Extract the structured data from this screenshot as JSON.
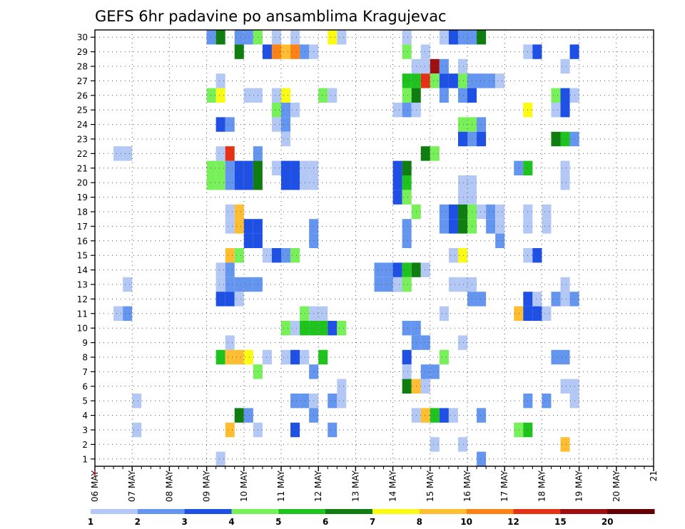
{
  "chart_data": {
    "type": "heatmap",
    "title": "GEFS 6hr padavine po ansamblima Kragujevac",
    "xlabel": "",
    "ylabel": "",
    "x_tick_labels": [
      "06 MAY",
      "07 MAY",
      "08 MAY",
      "09 MAY",
      "10 MAY",
      "11 MAY",
      "12 MAY",
      "13 MAY",
      "14 MAY",
      "15 MAY",
      "16 MAY",
      "17 MAY",
      "18 MAY",
      "19 MAY",
      "20 MAY",
      "21"
    ],
    "y_tick_labels": [
      "1",
      "2",
      "3",
      "4",
      "5",
      "6",
      "7",
      "8",
      "9",
      "10",
      "11",
      "12",
      "13",
      "14",
      "15",
      "16",
      "17",
      "18",
      "19",
      "20",
      "21",
      "22",
      "23",
      "24",
      "25",
      "26",
      "27",
      "28",
      "29",
      "30"
    ],
    "xlim": [
      0,
      60
    ],
    "ylim": [
      0,
      30
    ],
    "x_step_hours": 6,
    "grid": true,
    "legend": {
      "placement": "bottom",
      "bins": [
        1,
        2,
        3,
        4,
        5,
        6,
        7,
        8,
        10,
        12,
        15,
        20
      ],
      "labels": [
        "1",
        "2",
        "3",
        "4",
        "5",
        "6",
        "7",
        "8",
        "10",
        "12",
        "15",
        "20"
      ],
      "colors": [
        "#b4c8f5",
        "#6496f0",
        "#1e50e6",
        "#78f05a",
        "#1ec31e",
        "#0f7d0f",
        "#fafa14",
        "#ffbe32",
        "#ff8214",
        "#e63214",
        "#a00f0f",
        "#640000"
      ]
    },
    "cells": [
      {
        "x": 12,
        "y": 30,
        "v": 2
      },
      {
        "x": 13,
        "y": 30,
        "v": 6
      },
      {
        "x": 15,
        "y": 30,
        "v": 2
      },
      {
        "x": 16,
        "y": 30,
        "v": 2
      },
      {
        "x": 17,
        "y": 30,
        "v": 4
      },
      {
        "x": 19,
        "y": 30,
        "v": 1
      },
      {
        "x": 21,
        "y": 30,
        "v": 1
      },
      {
        "x": 26,
        "y": 30,
        "v": 1
      },
      {
        "x": 33,
        "y": 30,
        "v": 1
      },
      {
        "x": 37,
        "y": 30,
        "v": 1
      },
      {
        "x": 38,
        "y": 30,
        "v": 3
      },
      {
        "x": 39,
        "y": 30,
        "v": 2
      },
      {
        "x": 40,
        "y": 30,
        "v": 4
      },
      {
        "x": 41,
        "y": 30,
        "v": 6
      },
      {
        "x": 25,
        "y": 29,
        "v": 7
      },
      {
        "x": 40,
        "y": 29,
        "v": 2
      },
      {
        "x": 15,
        "y": 28,
        "v": 6
      },
      {
        "x": 18,
        "y": 28,
        "v": 3
      },
      {
        "x": 19,
        "y": 28,
        "v": 10
      },
      {
        "x": 20,
        "y": 28,
        "v": 8
      },
      {
        "x": 21,
        "y": 28,
        "v": 10
      },
      {
        "x": 22,
        "y": 28,
        "v": 2
      },
      {
        "x": 23,
        "y": 28,
        "v": 1
      },
      {
        "x": 33,
        "y": 28,
        "v": 4
      },
      {
        "x": 35,
        "y": 28,
        "v": 1
      },
      {
        "x": 46,
        "y": 28,
        "v": 1
      },
      {
        "x": 47,
        "y": 28,
        "v": 3
      },
      {
        "x": 51,
        "y": 28,
        "v": 3
      },
      {
        "x": 34,
        "y": 27,
        "v": 1
      },
      {
        "x": 35,
        "y": 27,
        "v": 1
      },
      {
        "x": 36,
        "y": 27,
        "v": 15
      },
      {
        "x": 37,
        "y": 27,
        "v": 2
      },
      {
        "x": 39,
        "y": 27,
        "v": 1
      },
      {
        "x": 50,
        "y": 27,
        "v": 1
      },
      {
        "x": 13,
        "y": 26,
        "v": 1
      },
      {
        "x": 33,
        "y": 26,
        "v": 5
      },
      {
        "x": 34,
        "y": 26,
        "v": 5
      },
      {
        "x": 35,
        "y": 26,
        "v": 12
      },
      {
        "x": 36,
        "y": 26,
        "v": 4
      },
      {
        "x": 37,
        "y": 26,
        "v": 3
      },
      {
        "x": 38,
        "y": 26,
        "v": 3
      },
      {
        "x": 39,
        "y": 26,
        "v": 4
      },
      {
        "x": 40,
        "y": 26,
        "v": 2
      },
      {
        "x": 41,
        "y": 26,
        "v": 2
      },
      {
        "x": 42,
        "y": 26,
        "v": 2
      },
      {
        "x": 43,
        "y": 26,
        "v": 1
      },
      {
        "x": 12,
        "y": 25,
        "v": 4
      },
      {
        "x": 13,
        "y": 25,
        "v": 7
      },
      {
        "x": 16,
        "y": 25,
        "v": 1
      },
      {
        "x": 17,
        "y": 25,
        "v": 1
      },
      {
        "x": 19,
        "y": 25,
        "v": 1
      },
      {
        "x": 20,
        "y": 25,
        "v": 7
      },
      {
        "x": 24,
        "y": 25,
        "v": 4
      },
      {
        "x": 25,
        "y": 25,
        "v": 1
      },
      {
        "x": 33,
        "y": 25,
        "v": 4
      },
      {
        "x": 34,
        "y": 25,
        "v": 6
      },
      {
        "x": 37,
        "y": 25,
        "v": 2
      },
      {
        "x": 39,
        "y": 25,
        "v": 2
      },
      {
        "x": 40,
        "y": 25,
        "v": 3
      },
      {
        "x": 49,
        "y": 25,
        "v": 4
      },
      {
        "x": 50,
        "y": 25,
        "v": 3
      },
      {
        "x": 51,
        "y": 25,
        "v": 1
      },
      {
        "x": 19,
        "y": 24,
        "v": 4
      },
      {
        "x": 20,
        "y": 24,
        "v": 2
      },
      {
        "x": 21,
        "y": 24,
        "v": 1
      },
      {
        "x": 32,
        "y": 24,
        "v": 1
      },
      {
        "x": 33,
        "y": 24,
        "v": 2
      },
      {
        "x": 34,
        "y": 24,
        "v": 1
      },
      {
        "x": 46,
        "y": 24,
        "v": 7
      },
      {
        "x": 49,
        "y": 24,
        "v": 1
      },
      {
        "x": 50,
        "y": 24,
        "v": 3
      },
      {
        "x": 13,
        "y": 23,
        "v": 3
      },
      {
        "x": 14,
        "y": 23,
        "v": 2
      },
      {
        "x": 19,
        "y": 23,
        "v": 1
      },
      {
        "x": 20,
        "y": 23,
        "v": 2
      },
      {
        "x": 39,
        "y": 23,
        "v": 4
      },
      {
        "x": 40,
        "y": 23,
        "v": 4
      },
      {
        "x": 41,
        "y": 23,
        "v": 2
      },
      {
        "x": 20,
        "y": 22,
        "v": 1
      },
      {
        "x": 39,
        "y": 22,
        "v": 3
      },
      {
        "x": 40,
        "y": 22,
        "v": 2
      },
      {
        "x": 41,
        "y": 22,
        "v": 3
      },
      {
        "x": 49,
        "y": 22,
        "v": 6
      },
      {
        "x": 50,
        "y": 22,
        "v": 5
      },
      {
        "x": 51,
        "y": 22,
        "v": 2
      },
      {
        "x": 2,
        "y": 21,
        "v": 1
      },
      {
        "x": 3,
        "y": 21,
        "v": 1
      },
      {
        "x": 13,
        "y": 21,
        "v": 1
      },
      {
        "x": 14,
        "y": 21,
        "v": 12
      },
      {
        "x": 17,
        "y": 21,
        "v": 2
      },
      {
        "x": 35,
        "y": 21,
        "v": 6
      },
      {
        "x": 36,
        "y": 21,
        "v": 4
      },
      {
        "x": 12,
        "y": 20,
        "v": 4
      },
      {
        "x": 13,
        "y": 20,
        "v": 4
      },
      {
        "x": 14,
        "y": 20,
        "v": 2
      },
      {
        "x": 15,
        "y": 20,
        "v": 3
      },
      {
        "x": 16,
        "y": 20,
        "v": 3
      },
      {
        "x": 17,
        "y": 20,
        "v": 6
      },
      {
        "x": 19,
        "y": 20,
        "v": 1
      },
      {
        "x": 20,
        "y": 20,
        "v": 3
      },
      {
        "x": 21,
        "y": 20,
        "v": 3
      },
      {
        "x": 22,
        "y": 20,
        "v": 1
      },
      {
        "x": 23,
        "y": 20,
        "v": 1
      },
      {
        "x": 32,
        "y": 20,
        "v": 3
      },
      {
        "x": 33,
        "y": 20,
        "v": 6
      },
      {
        "x": 45,
        "y": 20,
        "v": 2
      },
      {
        "x": 46,
        "y": 20,
        "v": 5
      },
      {
        "x": 50,
        "y": 20,
        "v": 1
      },
      {
        "x": 12,
        "y": 19,
        "v": 4
      },
      {
        "x": 13,
        "y": 19,
        "v": 4
      },
      {
        "x": 14,
        "y": 19,
        "v": 2
      },
      {
        "x": 15,
        "y": 19,
        "v": 3
      },
      {
        "x": 16,
        "y": 19,
        "v": 3
      },
      {
        "x": 17,
        "y": 19,
        "v": 6
      },
      {
        "x": 20,
        "y": 19,
        "v": 3
      },
      {
        "x": 21,
        "y": 19,
        "v": 3
      },
      {
        "x": 22,
        "y": 19,
        "v": 1
      },
      {
        "x": 23,
        "y": 19,
        "v": 1
      },
      {
        "x": 32,
        "y": 19,
        "v": 3
      },
      {
        "x": 33,
        "y": 19,
        "v": 5
      },
      {
        "x": 39,
        "y": 19,
        "v": 1
      },
      {
        "x": 40,
        "y": 19,
        "v": 1
      },
      {
        "x": 50,
        "y": 19,
        "v": 1
      },
      {
        "x": 32,
        "y": 18,
        "v": 3
      },
      {
        "x": 33,
        "y": 18,
        "v": 4
      },
      {
        "x": 39,
        "y": 18,
        "v": 1
      },
      {
        "x": 40,
        "y": 18,
        "v": 1
      },
      {
        "x": 14,
        "y": 17,
        "v": 1
      },
      {
        "x": 15,
        "y": 17,
        "v": 8
      },
      {
        "x": 34,
        "y": 17,
        "v": 4
      },
      {
        "x": 37,
        "y": 17,
        "v": 2
      },
      {
        "x": 38,
        "y": 17,
        "v": 3
      },
      {
        "x": 39,
        "y": 17,
        "v": 6
      },
      {
        "x": 40,
        "y": 17,
        "v": 4
      },
      {
        "x": 41,
        "y": 17,
        "v": 1
      },
      {
        "x": 42,
        "y": 17,
        "v": 2
      },
      {
        "x": 43,
        "y": 17,
        "v": 1
      },
      {
        "x": 46,
        "y": 17,
        "v": 1
      },
      {
        "x": 48,
        "y": 17,
        "v": 1
      },
      {
        "x": 14,
        "y": 16,
        "v": 1
      },
      {
        "x": 15,
        "y": 16,
        "v": 8
      },
      {
        "x": 16,
        "y": 16,
        "v": 3
      },
      {
        "x": 17,
        "y": 16,
        "v": 3
      },
      {
        "x": 23,
        "y": 16,
        "v": 2
      },
      {
        "x": 33,
        "y": 16,
        "v": 2
      },
      {
        "x": 37,
        "y": 16,
        "v": 2
      },
      {
        "x": 38,
        "y": 16,
        "v": 3
      },
      {
        "x": 39,
        "y": 16,
        "v": 6
      },
      {
        "x": 40,
        "y": 16,
        "v": 4
      },
      {
        "x": 42,
        "y": 16,
        "v": 2
      },
      {
        "x": 43,
        "y": 16,
        "v": 1
      },
      {
        "x": 46,
        "y": 16,
        "v": 1
      },
      {
        "x": 48,
        "y": 16,
        "v": 1
      },
      {
        "x": 16,
        "y": 15,
        "v": 3
      },
      {
        "x": 17,
        "y": 15,
        "v": 3
      },
      {
        "x": 23,
        "y": 15,
        "v": 2
      },
      {
        "x": 33,
        "y": 15,
        "v": 2
      },
      {
        "x": 43,
        "y": 15,
        "v": 2
      },
      {
        "x": 14,
        "y": 14,
        "v": 8
      },
      {
        "x": 15,
        "y": 14,
        "v": 4
      },
      {
        "x": 18,
        "y": 14,
        "v": 1
      },
      {
        "x": 19,
        "y": 14,
        "v": 3
      },
      {
        "x": 20,
        "y": 14,
        "v": 2
      },
      {
        "x": 21,
        "y": 14,
        "v": 4
      },
      {
        "x": 38,
        "y": 14,
        "v": 1
      },
      {
        "x": 39,
        "y": 14,
        "v": 7
      },
      {
        "x": 46,
        "y": 14,
        "v": 1
      },
      {
        "x": 47,
        "y": 14,
        "v": 3
      },
      {
        "x": 13,
        "y": 13,
        "v": 1
      },
      {
        "x": 14,
        "y": 13,
        "v": 2
      },
      {
        "x": 30,
        "y": 13,
        "v": 2
      },
      {
        "x": 31,
        "y": 13,
        "v": 2
      },
      {
        "x": 32,
        "y": 13,
        "v": 3
      },
      {
        "x": 33,
        "y": 13,
        "v": 5
      },
      {
        "x": 34,
        "y": 13,
        "v": 6
      },
      {
        "x": 35,
        "y": 13,
        "v": 1
      },
      {
        "x": 13,
        "y": 12,
        "v": 1
      },
      {
        "x": 14,
        "y": 12,
        "v": 2
      },
      {
        "x": 30,
        "y": 12,
        "v": 2
      },
      {
        "x": 31,
        "y": 12,
        "v": 2
      },
      {
        "x": 32,
        "y": 12,
        "v": 3
      },
      {
        "x": 33,
        "y": 12,
        "v": 4
      },
      {
        "x": 3,
        "y": 12,
        "v": 1
      },
      {
        "x": 15,
        "y": 12,
        "v": 2
      },
      {
        "x": 16,
        "y": 12,
        "v": 2
      },
      {
        "x": 17,
        "y": 12,
        "v": 2
      },
      {
        "x": 32,
        "y": 12,
        "v": 1
      },
      {
        "x": 33,
        "y": 12,
        "v": 4
      },
      {
        "x": 38,
        "y": 12,
        "v": 1
      },
      {
        "x": 39,
        "y": 12,
        "v": 1
      },
      {
        "x": 40,
        "y": 12,
        "v": 1
      },
      {
        "x": 50,
        "y": 12,
        "v": 1
      },
      {
        "x": 13,
        "y": 11,
        "v": 3
      },
      {
        "x": 14,
        "y": 11,
        "v": 3
      },
      {
        "x": 15,
        "y": 11,
        "v": 1
      },
      {
        "x": 40,
        "y": 11,
        "v": 2
      },
      {
        "x": 41,
        "y": 11,
        "v": 2
      },
      {
        "x": 46,
        "y": 11,
        "v": 3
      },
      {
        "x": 47,
        "y": 11,
        "v": 1
      },
      {
        "x": 49,
        "y": 11,
        "v": 2
      },
      {
        "x": 50,
        "y": 11,
        "v": 1
      },
      {
        "x": 51,
        "y": 11,
        "v": 2
      },
      {
        "x": 2,
        "y": 10,
        "v": 1
      },
      {
        "x": 3,
        "y": 10,
        "v": 2
      },
      {
        "x": 22,
        "y": 10,
        "v": 4
      },
      {
        "x": 23,
        "y": 10,
        "v": 1
      },
      {
        "x": 24,
        "y": 10,
        "v": 1
      },
      {
        "x": 37,
        "y": 10,
        "v": 1
      },
      {
        "x": 45,
        "y": 10,
        "v": 8
      },
      {
        "x": 46,
        "y": 10,
        "v": 3
      },
      {
        "x": 47,
        "y": 10,
        "v": 3
      },
      {
        "x": 48,
        "y": 10,
        "v": 1
      },
      {
        "x": 20,
        "y": 9,
        "v": 4
      },
      {
        "x": 21,
        "y": 9,
        "v": 1
      },
      {
        "x": 22,
        "y": 9,
        "v": 5
      },
      {
        "x": 23,
        "y": 9,
        "v": 5
      },
      {
        "x": 24,
        "y": 9,
        "v": 5
      },
      {
        "x": 25,
        "y": 9,
        "v": 3
      },
      {
        "x": 26,
        "y": 9,
        "v": 4
      },
      {
        "x": 33,
        "y": 9,
        "v": 2
      },
      {
        "x": 34,
        "y": 9,
        "v": 2
      },
      {
        "x": 14,
        "y": 8,
        "v": 1
      },
      {
        "x": 34,
        "y": 8,
        "v": 2
      },
      {
        "x": 35,
        "y": 8,
        "v": 2
      },
      {
        "x": 39,
        "y": 8,
        "v": 1
      },
      {
        "x": 13,
        "y": 7,
        "v": 5
      },
      {
        "x": 14,
        "y": 7,
        "v": 9
      },
      {
        "x": 15,
        "y": 7,
        "v": 8
      },
      {
        "x": 16,
        "y": 7,
        "v": 7
      },
      {
        "x": 18,
        "y": 7,
        "v": 1
      },
      {
        "x": 20,
        "y": 7,
        "v": 1
      },
      {
        "x": 21,
        "y": 7,
        "v": 3
      },
      {
        "x": 22,
        "y": 7,
        "v": 1
      },
      {
        "x": 24,
        "y": 7,
        "v": 5
      },
      {
        "x": 33,
        "y": 7,
        "v": 3
      },
      {
        "x": 37,
        "y": 7,
        "v": 4
      },
      {
        "x": 49,
        "y": 7,
        "v": 2
      },
      {
        "x": 50,
        "y": 7,
        "v": 2
      },
      {
        "x": 17,
        "y": 6,
        "v": 4
      },
      {
        "x": 23,
        "y": 6,
        "v": 2
      },
      {
        "x": 33,
        "y": 6,
        "v": 1
      },
      {
        "x": 35,
        "y": 6,
        "v": 2
      },
      {
        "x": 36,
        "y": 6,
        "v": 2
      },
      {
        "x": 26,
        "y": 5,
        "v": 1
      },
      {
        "x": 33,
        "y": 5,
        "v": 6
      },
      {
        "x": 34,
        "y": 5,
        "v": 8
      },
      {
        "x": 35,
        "y": 5,
        "v": 1
      },
      {
        "x": 50,
        "y": 5,
        "v": 1
      },
      {
        "x": 51,
        "y": 5,
        "v": 1
      },
      {
        "x": 4,
        "y": 4,
        "v": 1
      },
      {
        "x": 21,
        "y": 4,
        "v": 2
      },
      {
        "x": 22,
        "y": 4,
        "v": 2
      },
      {
        "x": 23,
        "y": 4,
        "v": 1
      },
      {
        "x": 25,
        "y": 4,
        "v": 2
      },
      {
        "x": 26,
        "y": 4,
        "v": 1
      },
      {
        "x": 46,
        "y": 4,
        "v": 2
      },
      {
        "x": 48,
        "y": 4,
        "v": 2
      },
      {
        "x": 51,
        "y": 4,
        "v": 1
      },
      {
        "x": 15,
        "y": 3,
        "v": 6
      },
      {
        "x": 16,
        "y": 3,
        "v": 2
      },
      {
        "x": 23,
        "y": 3,
        "v": 2
      },
      {
        "x": 34,
        "y": 3,
        "v": 1
      },
      {
        "x": 35,
        "y": 3,
        "v": 9
      },
      {
        "x": 36,
        "y": 3,
        "v": 5
      },
      {
        "x": 37,
        "y": 3,
        "v": 3
      },
      {
        "x": 38,
        "y": 3,
        "v": 1
      },
      {
        "x": 41,
        "y": 3,
        "v": 2
      },
      {
        "x": 4,
        "y": 2,
        "v": 1
      },
      {
        "x": 14,
        "y": 2,
        "v": 8
      },
      {
        "x": 17,
        "y": 2,
        "v": 1
      },
      {
        "x": 21,
        "y": 2,
        "v": 3
      },
      {
        "x": 25,
        "y": 2,
        "v": 2
      },
      {
        "x": 45,
        "y": 2,
        "v": 4
      },
      {
        "x": 46,
        "y": 2,
        "v": 5
      },
      {
        "x": 36,
        "y": 1,
        "v": 1
      },
      {
        "x": 39,
        "y": 1,
        "v": 1
      },
      {
        "x": 50,
        "y": 1,
        "v": 8
      },
      {
        "x": 13,
        "y": 0,
        "v": 1
      },
      {
        "x": 41,
        "y": 0,
        "v": 2
      }
    ]
  }
}
